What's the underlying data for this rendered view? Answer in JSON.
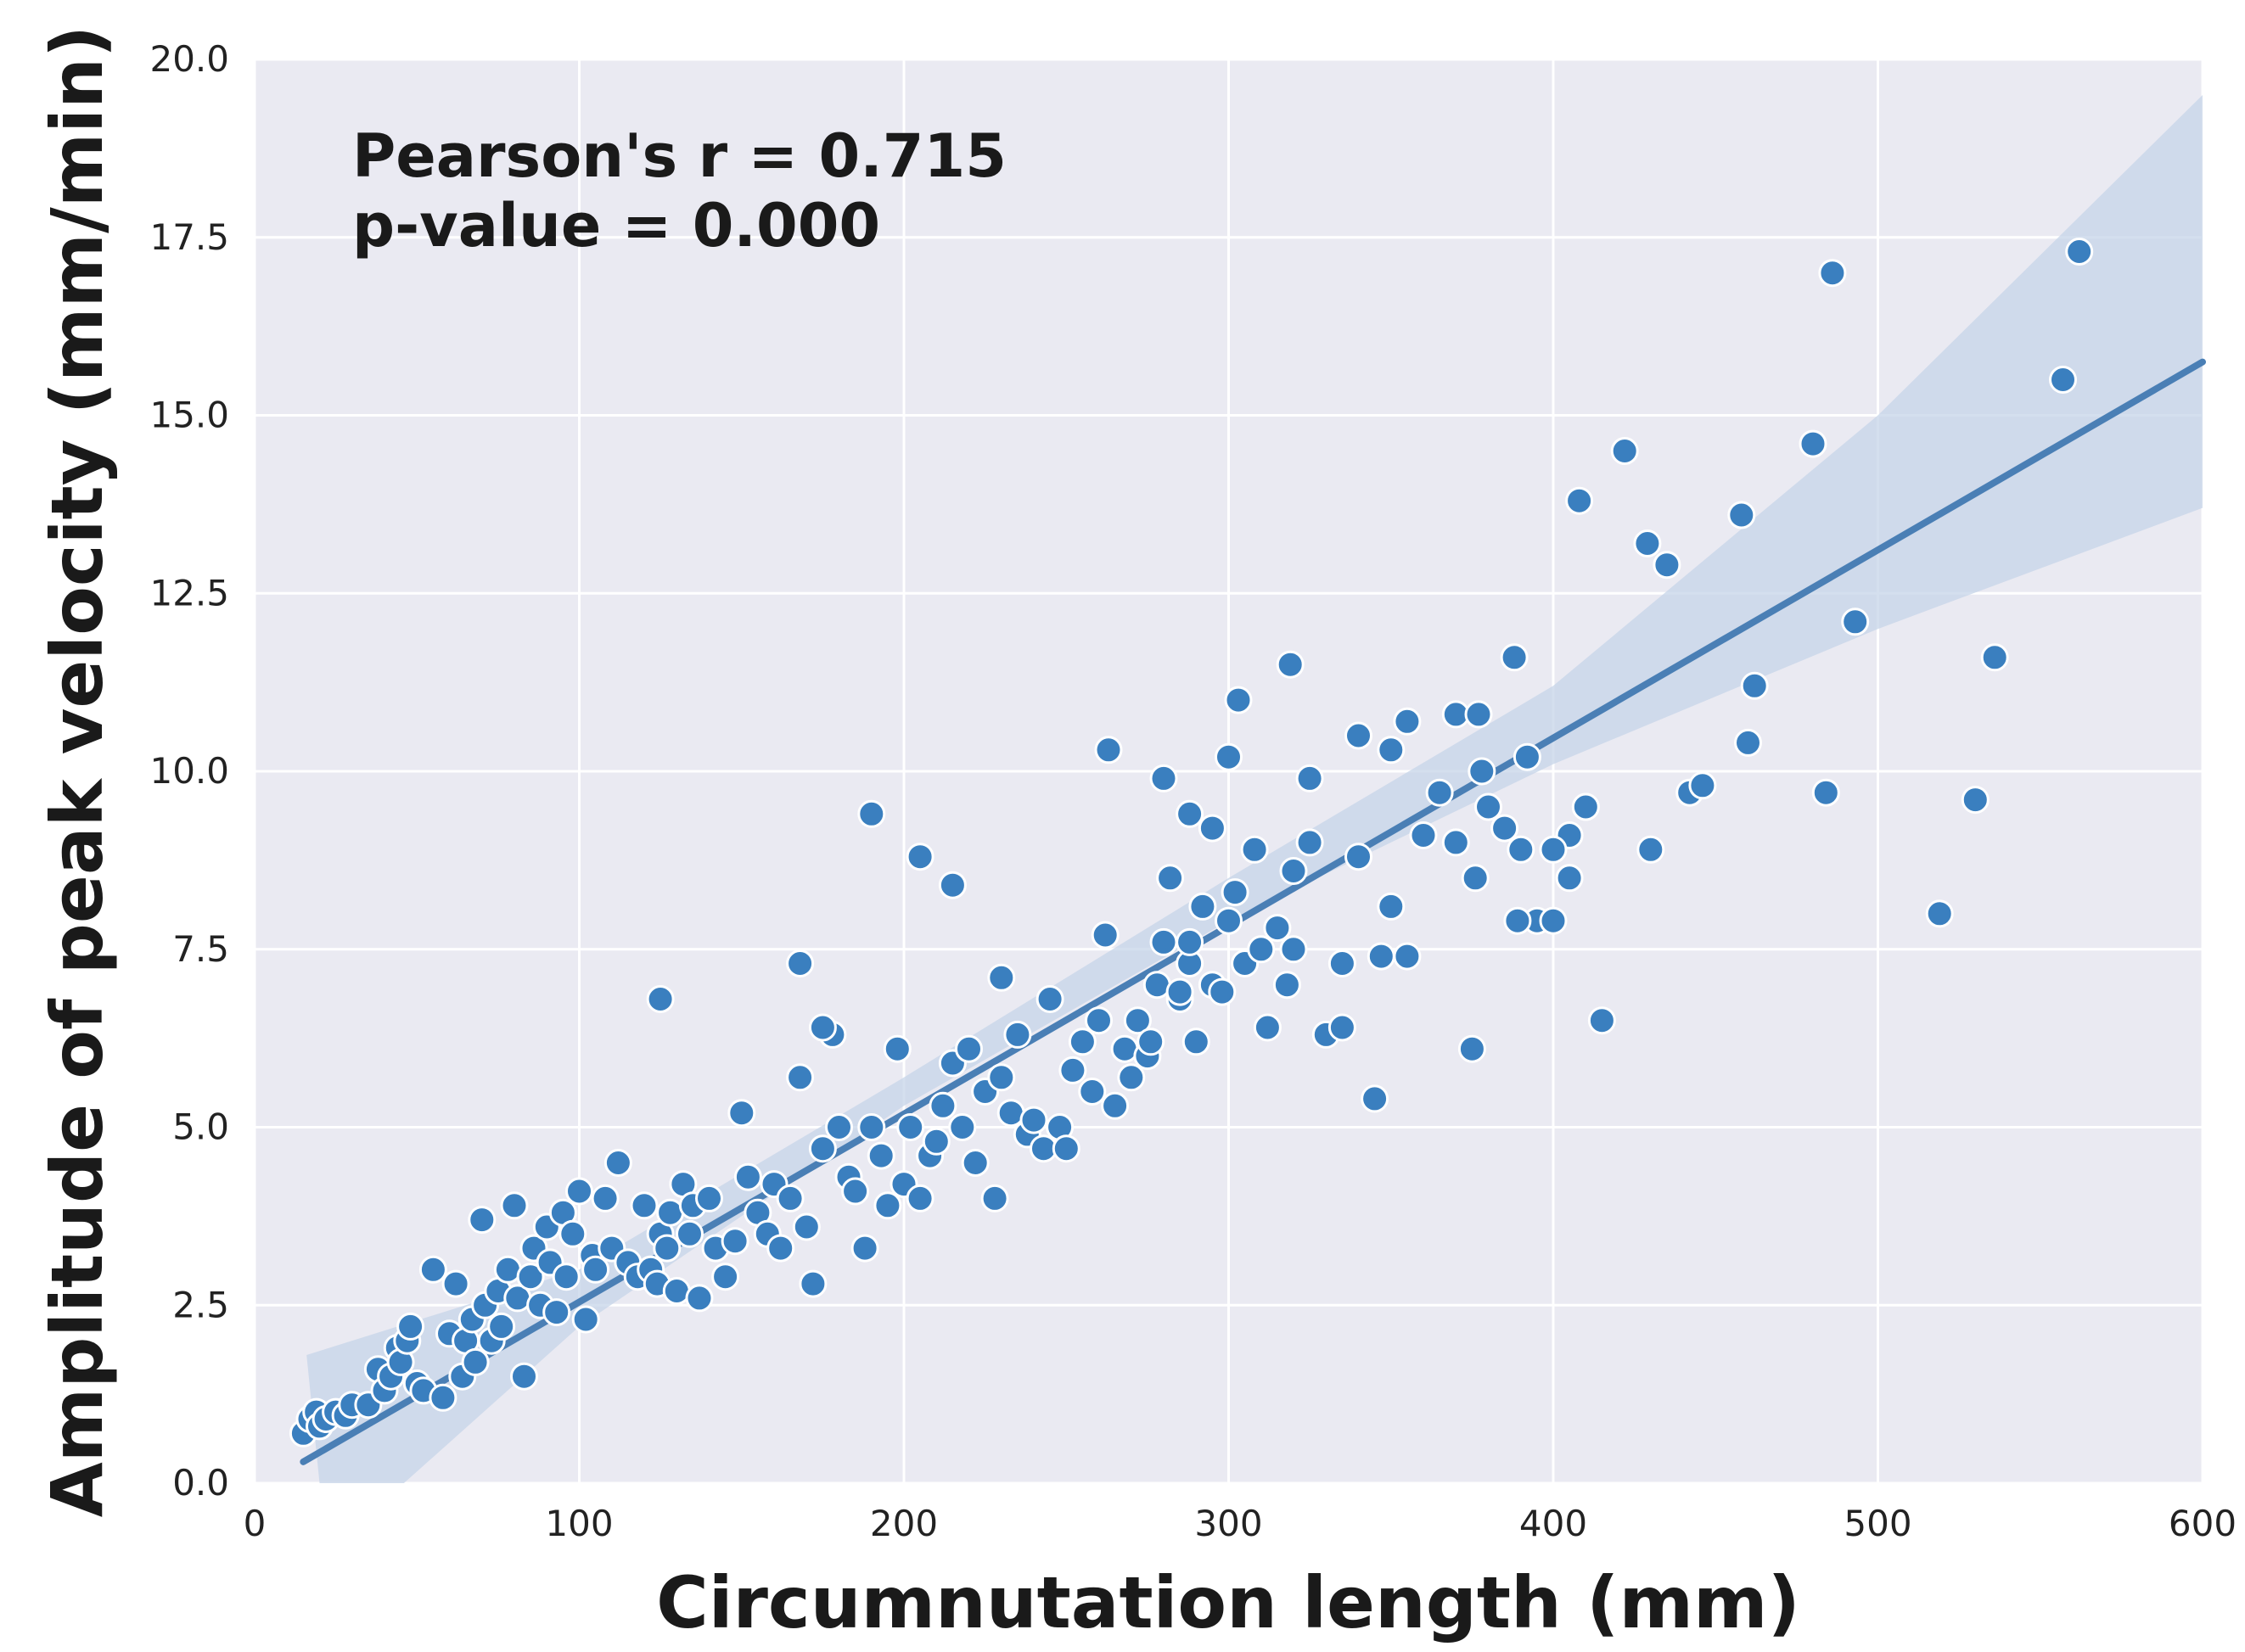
{
  "chart_data": {
    "type": "scatter",
    "title": "",
    "xlabel": "Circumnutation length (mm)",
    "ylabel": "Amplitude of peak velocity (mm/min)",
    "xlim": [
      0,
      600
    ],
    "ylim": [
      0,
      20
    ],
    "x_ticks": [
      "0",
      "100",
      "200",
      "300",
      "400",
      "500",
      "600"
    ],
    "y_ticks": [
      "0.0",
      "2.5",
      "5.0",
      "7.5",
      "10.0",
      "12.5",
      "15.0",
      "17.5",
      "20.0"
    ],
    "grid": true,
    "annotations": [
      "Pearson's r = 0.715",
      "p-value = 0.000"
    ],
    "colors": {
      "background": "#eaeaf2",
      "point": "#3a7fbf",
      "point_edge": "#ffffff",
      "line": "#4a7fb5",
      "band": "#c6d4e8"
    },
    "regression": {
      "x_range": [
        15,
        600
      ],
      "y_at_start": 0.3,
      "y_at_end": 15.75,
      "ci_lower": [
        [
          20,
          -1.2
        ],
        [
          46,
          0.0
        ],
        [
          100,
          2.2
        ],
        [
          200,
          5.3
        ],
        [
          300,
          7.9
        ],
        [
          400,
          10.1
        ],
        [
          500,
          12.0
        ],
        [
          600,
          13.7
        ]
      ],
      "ci_upper": [
        [
          16,
          1.8
        ],
        [
          100,
          3.0
        ],
        [
          200,
          5.7
        ],
        [
          300,
          8.5
        ],
        [
          400,
          11.2
        ],
        [
          500,
          15.0
        ],
        [
          600,
          19.5
        ]
      ]
    },
    "series": [
      {
        "x": [
          15,
          17,
          19,
          20,
          22,
          25,
          28,
          30,
          35,
          38,
          40,
          42,
          44,
          45,
          47,
          48,
          50,
          52,
          55,
          58,
          60,
          62,
          64,
          65,
          67,
          68,
          70,
          71,
          73,
          75,
          76,
          78,
          80,
          81,
          83,
          85,
          86,
          88,
          90,
          91,
          93,
          95,
          96,
          98,
          100,
          102,
          104,
          105,
          108,
          110,
          112,
          115,
          118,
          120,
          122,
          124,
          125,
          127,
          128,
          130,
          132,
          134,
          135,
          137,
          140,
          142,
          145,
          148,
          150,
          152,
          155,
          158,
          160,
          162,
          165,
          168,
          170,
          172,
          175,
          178,
          180,
          183,
          185,
          188,
          190,
          193,
          195,
          198,
          200,
          202,
          205,
          208,
          210,
          212,
          215,
          218,
          220,
          222,
          225,
          228,
          230,
          233,
          235,
          238,
          240,
          243,
          245,
          248,
          250,
          252,
          255,
          258,
          260,
          262,
          265,
          268,
          270,
          272,
          275,
          278,
          280,
          282,
          285,
          288,
          290,
          292,
          295,
          298,
          300,
          302,
          305,
          308,
          310,
          312,
          315,
          318,
          320,
          325,
          330,
          335,
          340,
          345,
          350,
          355,
          360,
          365,
          370,
          375,
          380,
          385,
          390,
          395,
          400,
          405,
          410,
          415,
          125,
          190,
          205,
          215,
          168,
          175,
          230,
          263,
          280,
          288,
          295,
          300,
          303,
          319,
          325,
          340,
          350,
          355,
          370,
          378,
          388,
          392,
          405,
          408,
          410,
          422,
          429,
          430,
          435,
          442,
          446,
          458,
          460,
          462,
          480,
          484,
          486,
          493,
          519,
          530,
          536,
          557,
          562,
          276,
          285,
          288,
          320,
          335,
          347,
          377,
          376,
          389,
          400
        ],
        "y": [
          0.7,
          0.9,
          1.0,
          0.8,
          0.9,
          1.0,
          0.95,
          1.1,
          1.1,
          1.6,
          1.3,
          1.5,
          1.9,
          1.7,
          2.0,
          2.2,
          1.4,
          1.3,
          3.0,
          1.2,
          2.1,
          2.8,
          1.5,
          2.0,
          2.3,
          1.7,
          3.7,
          2.5,
          2.0,
          2.7,
          2.2,
          3.0,
          3.9,
          2.6,
          1.5,
          2.9,
          3.3,
          2.5,
          3.6,
          3.1,
          2.4,
          3.8,
          2.9,
          3.5,
          4.1,
          2.3,
          3.2,
          3.0,
          4.0,
          3.3,
          4.5,
          3.1,
          2.9,
          3.9,
          3.0,
          2.8,
          3.5,
          3.3,
          3.8,
          2.7,
          4.2,
          3.5,
          3.9,
          2.6,
          4.0,
          3.3,
          2.9,
          3.4,
          5.2,
          4.3,
          3.8,
          3.5,
          4.2,
          3.3,
          4.0,
          5.7,
          3.6,
          2.8,
          4.7,
          6.3,
          5.0,
          4.3,
          4.1,
          3.3,
          5.0,
          4.6,
          3.9,
          6.1,
          4.2,
          5.0,
          4.0,
          4.6,
          4.8,
          5.3,
          5.9,
          5.0,
          6.1,
          4.5,
          5.5,
          4.0,
          5.7,
          5.2,
          6.3,
          4.9,
          5.1,
          4.7,
          6.8,
          5.0,
          4.7,
          5.8,
          6.2,
          5.5,
          6.5,
          7.7,
          5.3,
          6.1,
          5.7,
          6.5,
          6.0,
          7.0,
          7.6,
          8.5,
          6.8,
          7.3,
          6.2,
          8.1,
          7.0,
          6.9,
          7.9,
          8.3,
          7.3,
          8.9,
          7.5,
          6.4,
          7.8,
          7.0,
          8.6,
          9.0,
          6.3,
          7.3,
          8.8,
          5.4,
          8.1,
          7.4,
          9.1,
          9.7,
          9.0,
          6.1,
          9.5,
          9.2,
          8.9,
          7.9,
          7.9,
          8.5,
          9.5,
          6.5,
          6.8,
          9.4,
          8.8,
          8.4,
          7.3,
          6.4,
          7.1,
          10.3,
          9.9,
          9.4,
          9.2,
          10.2,
          11.0,
          11.5,
          9.9,
          10.5,
          10.3,
          10.7,
          10.8,
          10.0,
          11.6,
          10.2,
          9.1,
          13.8,
          9.5,
          14.5,
          13.2,
          8.9,
          12.9,
          9.7,
          9.8,
          13.6,
          10.4,
          11.2,
          14.6,
          9.7,
          17.0,
          12.1,
          8.0,
          9.6,
          11.6,
          15.5,
          17.3,
          6.2,
          6.9,
          7.6,
          7.5,
          6.4,
          7.4,
          10.8,
          8.5,
          7.9,
          8.9
        ]
      }
    ]
  }
}
